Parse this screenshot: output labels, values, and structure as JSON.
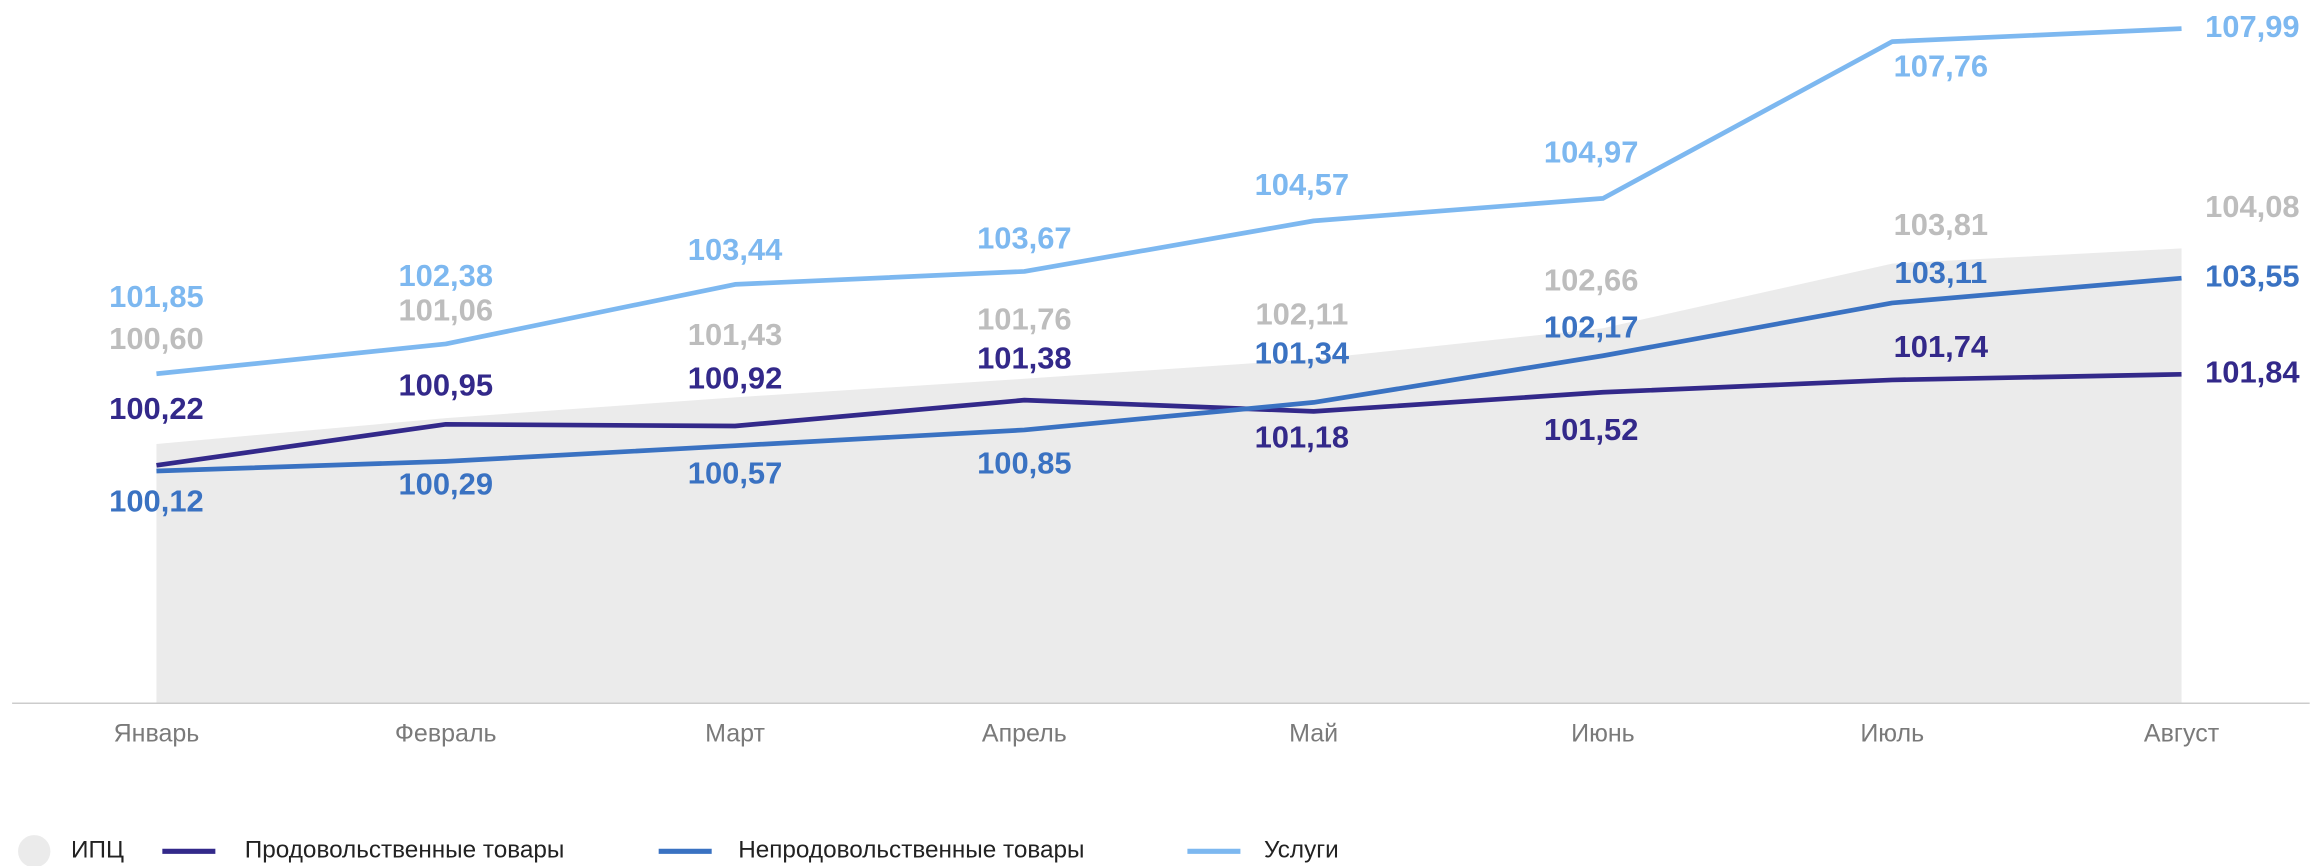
{
  "chart_data": {
    "type": "line",
    "categories": [
      "Январь",
      "Февраль",
      "Март",
      "Апрель",
      "Май",
      "Июнь",
      "Июль",
      "Август"
    ],
    "ylim": [
      96,
      108.5
    ],
    "series": [
      {
        "name": "ИПЦ",
        "kind": "area",
        "color": "#ebebeb",
        "label_color": "#bdbdbd",
        "values": [
          100.6,
          101.06,
          101.43,
          101.76,
          102.11,
          102.66,
          103.81,
          104.08
        ],
        "value_labels": [
          "100,60",
          "101,06",
          "101,43",
          "101,76",
          "102,11",
          "102,66",
          "103,81",
          "104,08"
        ]
      },
      {
        "name": "Продовольственные товары",
        "kind": "line",
        "color": "#33298a",
        "label_color": "#33298a",
        "values": [
          100.22,
          100.95,
          100.92,
          101.38,
          101.18,
          101.52,
          101.74,
          101.84
        ],
        "value_labels": [
          "100,22",
          "100,95",
          "100,92",
          "101,38",
          "101,18",
          "101,52",
          "101,74",
          "101,84"
        ]
      },
      {
        "name": "Непродовольственные товары",
        "kind": "line",
        "color": "#3a72c2",
        "label_color": "#3a72c2",
        "values": [
          100.12,
          100.29,
          100.57,
          100.85,
          101.34,
          102.17,
          103.11,
          103.55
        ],
        "value_labels": [
          "100,12",
          "100,29",
          "100,57",
          "100,85",
          "101,34",
          "102,17",
          "103,11",
          "103,55"
        ]
      },
      {
        "name": "Услуги",
        "kind": "line",
        "color": "#7db8f0",
        "label_color": "#7db8f0",
        "values": [
          101.85,
          102.38,
          103.44,
          103.67,
          104.57,
          104.97,
          107.76,
          107.99
        ],
        "value_labels": [
          "101,85",
          "102,38",
          "103,44",
          "103,67",
          "104,57",
          "104,97",
          "107,76",
          "107,99"
        ]
      }
    ]
  }
}
